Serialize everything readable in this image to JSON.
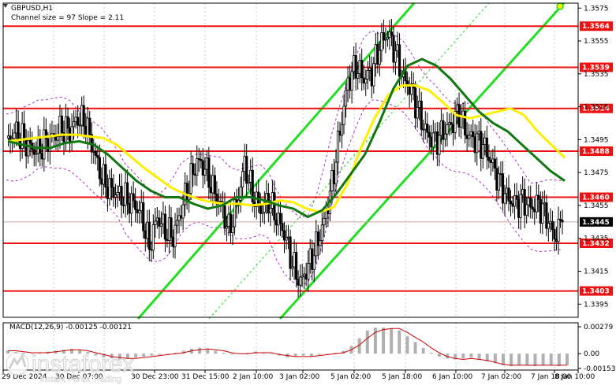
{
  "header": {
    "symbol": "GBPUSD,H1",
    "channel_info": "Channel size = 97 Slope = 2.11"
  },
  "macd": {
    "label": "MACD(12,26,9) -0.00125 -0.00121",
    "ticks": [
      "0.00279",
      "0.00",
      "-0.00153"
    ]
  },
  "watermark": {
    "brand": "instaforex",
    "tagline": "Instant Forex Trading"
  },
  "colors": {
    "levels": "#ee1111",
    "channel": "#22dd22",
    "ma_fast": "#ffee00",
    "ma_slow": "#117711",
    "bands": "#aa33cc",
    "macd_hist": "#b0b0b0",
    "macd_signal": "#cc0000"
  },
  "chart_data": {
    "type": "candlestick",
    "title": "GBPUSD,H1",
    "ylim": [
      1.3387,
      1.3578
    ],
    "y_ticks": [
      1.3575,
      1.3555,
      1.3535,
      1.3515,
      1.3495,
      1.3475,
      1.3455,
      1.3435,
      1.3415,
      1.3395
    ],
    "y_tick_labels": [
      "1.3575",
      "1.3555",
      "1.3535",
      "1.3515",
      "1.3495",
      "1.3475",
      "1.3455",
      "1.3435",
      "1.3415",
      "1.3395"
    ],
    "x_tick_labels": [
      "29 Dec 2024",
      "30 Dec 07:00",
      "30 Dec 23:00",
      "31 Dec 15:00",
      "2 Jan 10:00",
      "3 Jan 02:00",
      "5 Jan 02:00",
      "5 Jan 18:00",
      "6 Jan 10:00",
      "7 Jan 02:00",
      "7 Jan 18:00",
      "8 Jan 10:00"
    ],
    "levels": [
      {
        "value": 1.3564,
        "label": "1.3564"
      },
      {
        "value": 1.3539,
        "label": "1.3539"
      },
      {
        "value": 1.3514,
        "label": "1.3514"
      },
      {
        "value": 1.3488,
        "label": "1.3488"
      },
      {
        "value": 1.346,
        "label": "1.3460"
      },
      {
        "value": 1.3432,
        "label": "1.3432"
      },
      {
        "value": 1.3403,
        "label": "1.3403"
      }
    ],
    "current_price": {
      "value": 1.3445,
      "label": "1.3445"
    },
    "close_path": [
      1.3492,
      1.35,
      1.3496,
      1.349,
      1.3488,
      1.3494,
      1.3497,
      1.3502,
      1.35,
      1.3508,
      1.3505,
      1.3488,
      1.3472,
      1.3465,
      1.3462,
      1.3459,
      1.3456,
      1.345,
      1.343,
      1.3448,
      1.344,
      1.3436,
      1.3452,
      1.3468,
      1.3482,
      1.3478,
      1.3465,
      1.3455,
      1.344,
      1.3455,
      1.348,
      1.3462,
      1.3452,
      1.3458,
      1.3448,
      1.3438,
      1.342,
      1.3408,
      1.3418,
      1.343,
      1.3445,
      1.3468,
      1.35,
      1.353,
      1.354,
      1.3532,
      1.3536,
      1.3552,
      1.356,
      1.3548,
      1.3532,
      1.3525,
      1.351,
      1.3498,
      1.3494,
      1.35,
      1.3504,
      1.3512,
      1.3498,
      1.3495,
      1.3492,
      1.3482,
      1.347,
      1.346,
      1.3456,
      1.3458,
      1.3454,
      1.3456,
      1.3448,
      1.3436,
      1.3445
    ],
    "ma_yellow": [
      1.3494,
      1.3495,
      1.3496,
      1.3497,
      1.3498,
      1.3498,
      1.3497,
      1.3496,
      1.3492,
      1.3485,
      1.3478,
      1.3472,
      1.3466,
      1.3462,
      1.3459,
      1.3457,
      1.3456,
      1.3456,
      1.3455,
      1.3456,
      1.3458,
      1.3457,
      1.3453,
      1.3451,
      1.3454,
      1.3468,
      1.349,
      1.3508,
      1.3522,
      1.3528,
      1.3528,
      1.3525,
      1.3518,
      1.351,
      1.3508,
      1.351,
      1.3512,
      1.3514,
      1.351,
      1.35,
      1.3492,
      1.3484
    ],
    "ma_green": [
      1.3494,
      1.3492,
      1.349,
      1.349,
      1.3493,
      1.3494,
      1.3492,
      1.3486,
      1.3478,
      1.347,
      1.3464,
      1.346,
      1.346,
      1.3456,
      1.3453,
      1.3455,
      1.346,
      1.346,
      1.3458,
      1.3455,
      1.3453,
      1.3448,
      1.3452,
      1.3462,
      1.3474,
      1.3486,
      1.3505,
      1.3526,
      1.354,
      1.3544,
      1.354,
      1.3532,
      1.3522,
      1.3512,
      1.3505,
      1.35,
      1.3492,
      1.3484,
      1.3476,
      1.347
    ],
    "macd_hist": [
      0.0003,
      0.0002,
      0.0001,
      0.0,
      0.0001,
      0.0002,
      0.0003,
      0.0004,
      0.0005,
      0.0004,
      0.0002,
      -0.0002,
      -0.0004,
      -0.0005,
      -0.0006,
      -0.0005,
      -0.0004,
      -0.0003,
      -0.0002,
      -0.0001,
      0.0,
      0.0001,
      0.0003,
      0.0005,
      0.0006,
      0.0005,
      0.0003,
      0.0001,
      -0.0001,
      0.0,
      0.0001,
      0.0002,
      0.0001,
      0.0,
      -0.0002,
      -0.0004,
      -0.0003,
      -0.0002,
      -0.0003,
      -0.0001,
      0.0,
      0.0001,
      0.0003,
      0.0008,
      0.0016,
      0.0024,
      0.0027,
      0.0027,
      0.0026,
      0.0024,
      0.0018,
      0.0012,
      0.0006,
      0.0001,
      -0.0003,
      -0.0005,
      -0.0006,
      -0.0005,
      -0.0004,
      -0.0006,
      -0.0008,
      -0.001,
      -0.0012,
      -0.0013,
      -0.0012,
      -0.0012,
      -0.0013,
      -0.0012,
      -0.0012,
      -0.0013,
      -0.0012
    ],
    "macd_signal": [
      0.0003,
      0.0003,
      0.0002,
      0.0001,
      0.0001,
      0.0001,
      0.0002,
      0.0003,
      0.0004,
      0.0004,
      0.0003,
      0.0001,
      -0.0001,
      -0.0003,
      -0.0004,
      -0.0005,
      -0.0005,
      -0.0004,
      -0.0003,
      -0.0002,
      -0.0001,
      0.0,
      0.0001,
      0.0003,
      0.0004,
      0.0005,
      0.0004,
      0.0003,
      0.0001,
      0.0,
      0.0,
      0.0001,
      0.0001,
      0.0001,
      -0.0001,
      -0.0002,
      -0.0003,
      -0.0003,
      -0.0003,
      -0.0002,
      -0.0001,
      0.0,
      0.0001,
      0.0004,
      0.0009,
      0.0016,
      0.0022,
      0.0025,
      0.0026,
      0.0026,
      0.0022,
      0.0017,
      0.0012,
      0.0006,
      0.0001,
      -0.0003,
      -0.0005,
      -0.0006,
      -0.0005,
      -0.0006,
      -0.0007,
      -0.0009,
      -0.0011,
      -0.0012,
      -0.0012,
      -0.0012,
      -0.0012,
      -0.0012,
      -0.0012,
      -0.0012,
      -0.0012
    ]
  }
}
